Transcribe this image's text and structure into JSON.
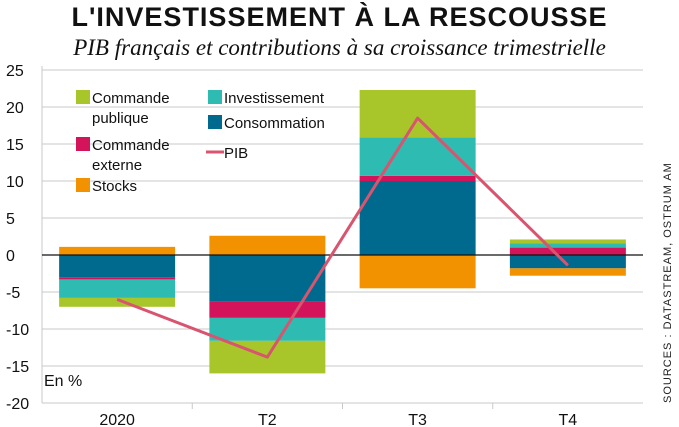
{
  "title": "L'INVESTISSEMENT À LA RESCOUSSE",
  "subtitle": "PIB français et contributions à sa croissance trimestrielle",
  "source": "SOURCES : DATASTREAM, OSTRUM AM",
  "unit_label": "En %",
  "colors": {
    "commande_publique": "#a8c62a",
    "investissement": "#2ebbb1",
    "consommation": "#006a8e",
    "commande_externe": "#d4145a",
    "stocks": "#f39200",
    "pib": "#d9546f"
  },
  "chart_data": {
    "type": "bar",
    "stacked": true,
    "categories": [
      "2020",
      "T2",
      "T3",
      "T4"
    ],
    "ylim": [
      -20,
      25
    ],
    "yticks": [
      -20,
      -15,
      -10,
      -5,
      0,
      5,
      10,
      15,
      20,
      25
    ],
    "grid": true,
    "legend_position": "top-left",
    "series": [
      {
        "name": "Consommation",
        "key": "consommation",
        "values": [
          -3.0,
          -6.3,
          10.0,
          -1.8
        ]
      },
      {
        "name": "Commande externe",
        "key": "commande_externe",
        "values": [
          -0.3,
          -2.2,
          0.7,
          1.0
        ]
      },
      {
        "name": "Investissement",
        "key": "investissement",
        "values": [
          -2.5,
          -3.1,
          5.2,
          0.6
        ]
      },
      {
        "name": "Commande publique",
        "key": "commande_publique",
        "values": [
          -1.2,
          -4.4,
          6.4,
          0.5
        ]
      },
      {
        "name": "Stocks",
        "key": "stocks",
        "values": [
          1.1,
          2.6,
          -4.5,
          -1.0
        ]
      }
    ],
    "line": {
      "name": "PIB",
      "key": "pib",
      "values": [
        -6.0,
        -13.8,
        18.5,
        -1.4
      ]
    }
  },
  "legend": [
    {
      "label": "Commande",
      "label2": "publique",
      "key": "commande_publique",
      "type": "box"
    },
    {
      "label": "Commande",
      "label2": "externe",
      "key": "commande_externe",
      "type": "box"
    },
    {
      "label": "Stocks",
      "label2": "",
      "key": "stocks",
      "type": "box"
    },
    {
      "label": "Investissement",
      "label2": "",
      "key": "investissement",
      "type": "box"
    },
    {
      "label": "Consommation",
      "label2": "",
      "key": "consommation",
      "type": "box"
    },
    {
      "label": "PIB",
      "label2": "",
      "key": "pib",
      "type": "line"
    }
  ]
}
